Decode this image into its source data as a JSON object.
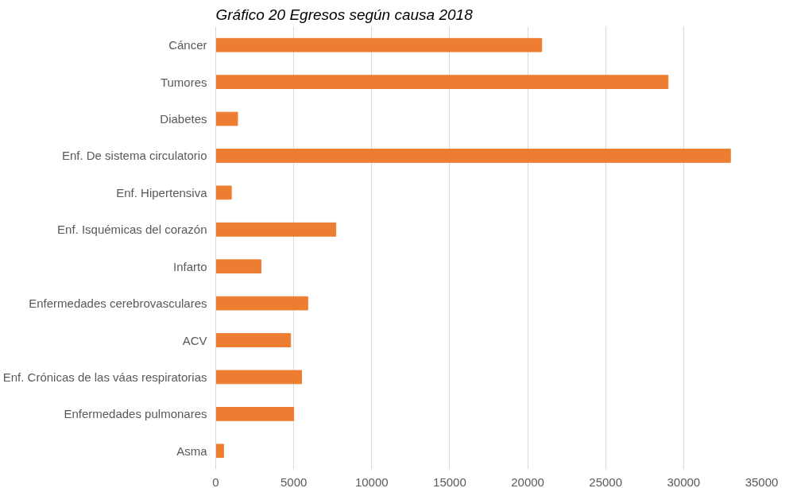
{
  "chart_data": {
    "type": "bar",
    "orientation": "horizontal",
    "title": "Gráfico 20 Egresos según causa 2018",
    "categories": [
      "Cáncer",
      "Tumores",
      "Diabetes",
      "Enf. De sistema circulatorio",
      "Enf. Hipertensiva",
      "Enf. Isquémicas del corazón",
      "Infarto",
      "Enfermedades cerebrovasculares",
      "ACV",
      "Enf. Crónicas de las váas respiratorias",
      "Enfermedades pulmonares",
      "Asma"
    ],
    "values": [
      20900,
      29000,
      1400,
      33000,
      1000,
      7700,
      2900,
      5900,
      4800,
      5500,
      5000,
      500
    ],
    "color": "#ed7d31",
    "xlim": [
      0,
      35000
    ],
    "xticks": [
      0,
      5000,
      10000,
      15000,
      20000,
      25000,
      30000,
      35000
    ],
    "grid": "x"
  }
}
